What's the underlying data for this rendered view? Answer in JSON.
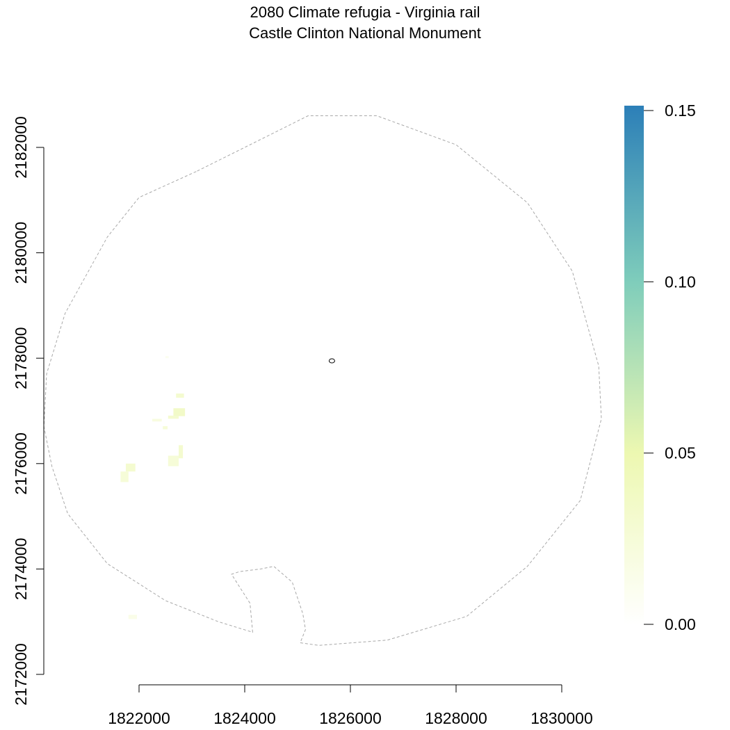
{
  "chart_data": {
    "type": "heatmap",
    "title": "2080 Climate refugia - Virginia rail",
    "subtitle": "Castle Clinton National Monument",
    "xlabel": "",
    "ylabel": "",
    "x_ticks": [
      1822000,
      1824000,
      1826000,
      1828000,
      1830000
    ],
    "y_ticks": [
      2172000,
      2174000,
      2176000,
      2178000,
      2180000,
      2182000
    ],
    "xlim": [
      1820000,
      1830000
    ],
    "ylim": [
      2172000,
      2182800
    ],
    "legend": {
      "type": "continuous-colorbar",
      "position": "right",
      "range": [
        0.0,
        0.15
      ],
      "ticks": [
        0.0,
        0.05,
        0.1,
        0.15
      ],
      "tick_labels": [
        "0.00",
        "0.05",
        "0.10",
        "0.15"
      ],
      "colors": [
        "#ffffff",
        "#edf8b1",
        "#7fcdbb",
        "#2c7fb8"
      ]
    },
    "boundary_polygon": [
      [
        1823100,
        2181550
      ],
      [
        1824800,
        2182400
      ],
      [
        1825200,
        2182600
      ],
      [
        1826500,
        2182600
      ],
      [
        1828000,
        2182050
      ],
      [
        1829350,
        2180950
      ],
      [
        1830200,
        2179650
      ],
      [
        1830700,
        2177850
      ],
      [
        1830750,
        2176850
      ],
      [
        1830350,
        2175300
      ],
      [
        1829350,
        2174050
      ],
      [
        1828200,
        2173100
      ],
      [
        1826700,
        2172650
      ],
      [
        1825400,
        2172550
      ],
      [
        1825050,
        2172600
      ],
      [
        1825150,
        2172850
      ],
      [
        1825100,
        2173150
      ],
      [
        1824900,
        2173750
      ],
      [
        1824550,
        2174050
      ],
      [
        1824300,
        2174000
      ],
      [
        1823900,
        2173950
      ],
      [
        1823750,
        2173900
      ],
      [
        1824100,
        2173350
      ],
      [
        1824150,
        2172800
      ],
      [
        1823500,
        2173000
      ],
      [
        1822500,
        2173400
      ],
      [
        1821400,
        2174100
      ],
      [
        1820650,
        2175050
      ],
      [
        1820350,
        2175950
      ],
      [
        1820200,
        2176700
      ],
      [
        1820250,
        2177700
      ],
      [
        1820600,
        2178850
      ],
      [
        1821400,
        2180300
      ],
      [
        1822000,
        2181050
      ],
      [
        1823100,
        2181550
      ]
    ],
    "monument_marker": [
      1825650,
      2177950
    ],
    "refugia_cells": [
      {
        "x": 1822700,
        "y": 2177250,
        "w": 150,
        "h": 80,
        "value": 0.03
      },
      {
        "x": 1822650,
        "y": 2176900,
        "w": 220,
        "h": 150,
        "value": 0.035
      },
      {
        "x": 1822550,
        "y": 2176850,
        "w": 200,
        "h": 60,
        "value": 0.03
      },
      {
        "x": 1822250,
        "y": 2176800,
        "w": 180,
        "h": 50,
        "value": 0.02
      },
      {
        "x": 1822450,
        "y": 2176650,
        "w": 90,
        "h": 60,
        "value": 0.025
      },
      {
        "x": 1822750,
        "y": 2176100,
        "w": 80,
        "h": 250,
        "value": 0.03
      },
      {
        "x": 1822550,
        "y": 2175950,
        "w": 200,
        "h": 200,
        "value": 0.025
      },
      {
        "x": 1821750,
        "y": 2175850,
        "w": 180,
        "h": 150,
        "value": 0.03
      },
      {
        "x": 1821650,
        "y": 2175650,
        "w": 150,
        "h": 200,
        "value": 0.025
      },
      {
        "x": 1821800,
        "y": 2173050,
        "w": 160,
        "h": 80,
        "value": 0.015
      },
      {
        "x": 1822500,
        "y": 2178000,
        "w": 60,
        "h": 40,
        "value": 0.01
      }
    ]
  }
}
